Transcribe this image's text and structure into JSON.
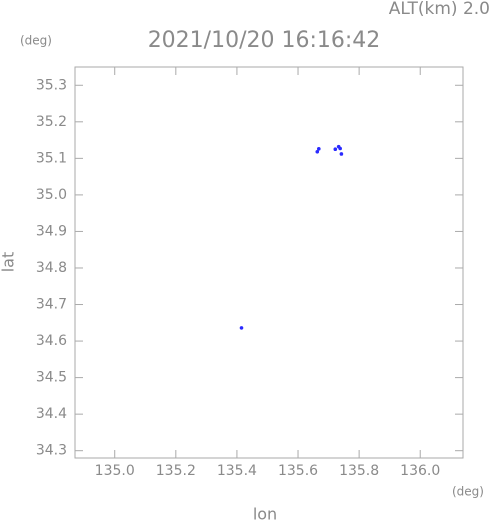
{
  "chart_data": {
    "type": "scatter",
    "title": "2021/10/20 16:16:42",
    "subtitle": "ALT(km) 2.0",
    "y_unit": "(deg)",
    "x_unit": "(deg)",
    "ylabel": "lat",
    "xlabel": "lon",
    "xlim": [
      134.87,
      136.14
    ],
    "ylim": [
      34.28,
      35.35
    ],
    "xticks": [
      {
        "value": 135.0,
        "label": "135.0"
      },
      135.2,
      135.4,
      135.6,
      135.8,
      {
        "value": 136.0,
        "label": "136.0"
      }
    ],
    "yticks": [
      34.3,
      34.4,
      34.5,
      34.6,
      34.7,
      34.8,
      34.9,
      {
        "value": 35.0,
        "label": "35.0"
      },
      35.1,
      35.2,
      35.3
    ],
    "series": [
      {
        "color": "#2a2aff",
        "x": [
          135.663,
          135.668,
          135.722,
          135.733,
          135.738,
          135.742,
          135.415
        ],
        "y": [
          35.118,
          35.126,
          35.125,
          35.132,
          35.127,
          35.112,
          34.636
        ]
      }
    ]
  }
}
